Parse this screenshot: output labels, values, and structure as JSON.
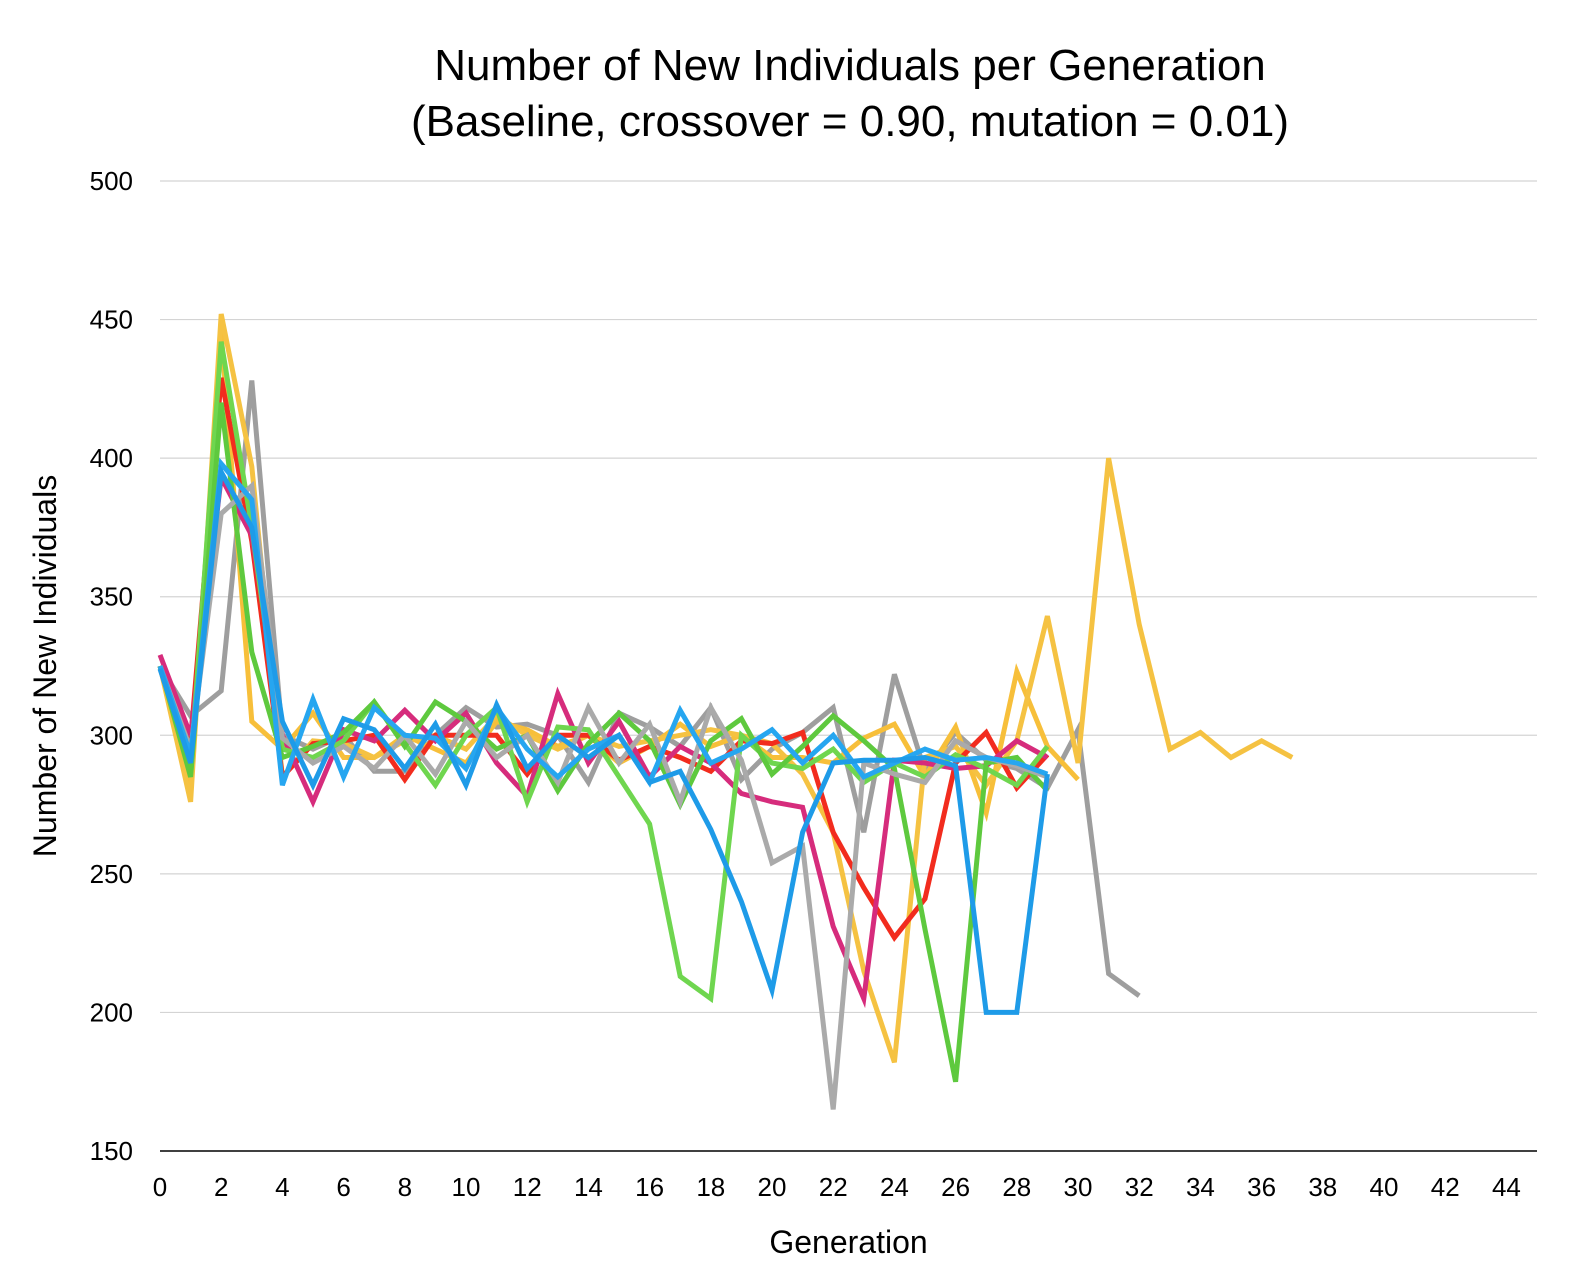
{
  "chart_data": {
    "type": "line",
    "title": "Number of New Individuals per Generation",
    "subtitle": "(Baseline, crossover = 0.90, mutation = 0.01)",
    "xlabel": "Generation",
    "ylabel": "Number of New Individuals",
    "xlim": [
      0,
      45
    ],
    "ylim": [
      150,
      500
    ],
    "x_ticks": [
      0,
      2,
      4,
      6,
      8,
      10,
      12,
      14,
      16,
      18,
      20,
      22,
      24,
      26,
      28,
      30,
      32,
      34,
      36,
      38,
      40,
      42,
      44
    ],
    "y_ticks": [
      150,
      200,
      250,
      300,
      350,
      400,
      450,
      500
    ],
    "grid": "horizontal",
    "legend": "none",
    "series": [
      {
        "color": "#9e9e9e",
        "values": [
          325,
          307,
          316,
          428,
          300,
          295,
          300,
          287,
          287,
          300,
          310,
          303,
          304,
          300,
          283,
          308,
          303,
          296,
          310,
          284,
          295,
          301,
          310,
          265,
          322,
          287,
          301,
          291,
          288,
          281,
          302,
          214,
          206
        ]
      },
      {
        "color": "#f7bf3a",
        "values": [
          325,
          280,
          445,
          305,
          295,
          308,
          292,
          292,
          300,
          295,
          290,
          305,
          302,
          296,
          300,
          290,
          296,
          304,
          296,
          300,
          292,
          292,
          290,
          299,
          304,
          285,
          303,
          272,
          323,
          296,
          284
        ]
      },
      {
        "color": "#f5c242",
        "values": [
          325,
          276,
          452,
          397,
          285,
          298,
          297,
          292,
          298,
          300,
          295,
          307,
          300,
          295,
          300,
          296,
          298,
          300,
          302,
          300,
          297,
          286,
          265,
          215,
          182,
          292,
          296,
          282,
          298,
          343,
          290,
          400,
          340,
          295,
          301,
          292,
          298,
          292
        ]
      },
      {
        "color": "#f22c1e",
        "values": [
          325,
          298,
          429,
          370,
          285,
          297,
          298,
          300,
          284,
          300,
          300,
          300,
          286,
          300,
          300,
          291,
          296,
          292,
          287,
          298,
          297,
          301,
          265,
          245,
          227,
          241,
          290,
          301,
          281,
          293
        ]
      },
      {
        "color": "#d62c7c",
        "values": [
          329,
          300,
          393,
          372,
          300,
          276,
          302,
          298,
          309,
          298,
          308,
          290,
          278,
          315,
          290,
          305,
          285,
          296,
          290,
          279,
          276,
          274,
          231,
          205,
          291,
          290,
          288,
          289,
          298,
          292
        ]
      },
      {
        "color": "#6fd64f",
        "values": [
          325,
          288,
          442,
          375,
          295,
          292,
          298,
          312,
          297,
          282,
          300,
          310,
          276,
          303,
          302,
          285,
          268,
          213,
          205,
          300,
          290,
          288,
          295,
          283,
          290,
          285,
          293,
          288,
          282,
          296
        ]
      },
      {
        "color": "#5ec93e",
        "values": [
          325,
          285,
          420,
          330,
          292,
          296,
          301,
          312,
          296,
          312,
          305,
          295,
          300,
          280,
          297,
          308,
          298,
          275,
          298,
          306,
          286,
          296,
          307,
          298,
          288,
          230,
          175,
          290,
          292,
          280
        ]
      },
      {
        "color": "#aaaaaa",
        "values": [
          325,
          295,
          380,
          390,
          299,
          290,
          296,
          288,
          300,
          286,
          305,
          292,
          300,
          283,
          310,
          290,
          304,
          276,
          310,
          291,
          254,
          260,
          165,
          290,
          286,
          283,
          298,
          292,
          289,
          285
        ]
      },
      {
        "color": "#26a6f0",
        "values": [
          325,
          293,
          398,
          385,
          282,
          313,
          285,
          310,
          300,
          299,
          288,
          310,
          295,
          285,
          295,
          300,
          283,
          309,
          290,
          295,
          302,
          290,
          300,
          285,
          290,
          295,
          291,
          292,
          290,
          286
        ]
      },
      {
        "color": "#1e9be8",
        "values": [
          324,
          290,
          395,
          375,
          305,
          282,
          306,
          302,
          288,
          304,
          282,
          311,
          288,
          300,
          292,
          300,
          283,
          287,
          266,
          240,
          208,
          265,
          290,
          291,
          291,
          292,
          289,
          200,
          200,
          286
        ]
      }
    ]
  }
}
